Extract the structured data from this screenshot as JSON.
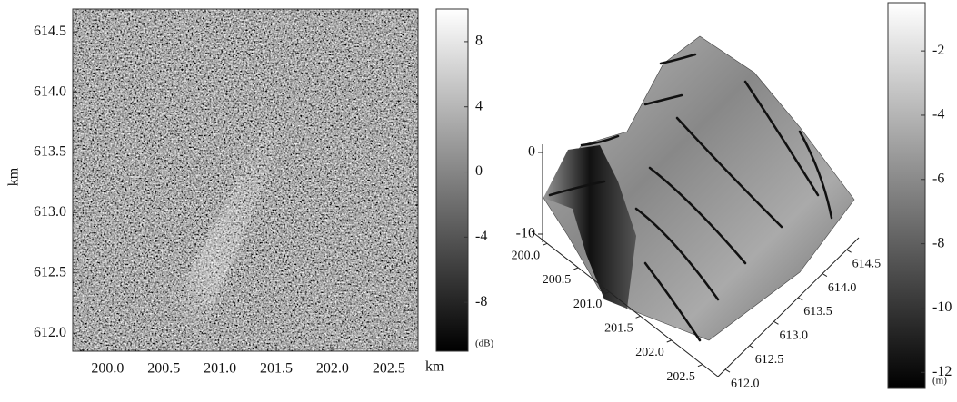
{
  "chart_data": [
    {
      "type": "heatmap",
      "xlabel": "km",
      "ylabel": "km",
      "xlim": [
        199.69,
        202.76
      ],
      "xticks": [
        {
          "value": 200,
          "label": "200.0"
        },
        200.5,
        {
          "value": 201,
          "label": "201.0"
        },
        201.5,
        {
          "value": 202,
          "label": "202.0"
        },
        202.5
      ],
      "ylim": [
        611.85,
        614.69
      ],
      "yticks": [
        {
          "value": 612,
          "label": "612.0"
        },
        612.5,
        {
          "value": 613,
          "label": "613.0"
        },
        613.5,
        {
          "value": 614,
          "label": "614.0"
        },
        614.5
      ],
      "colorbar": {
        "lim": [
          -11,
          10
        ],
        "ticks": [
          -8,
          -4,
          0,
          4,
          8
        ],
        "label": "(dB)"
      }
    },
    {
      "type": "surface",
      "xlim": [
        199.75,
        202.75
      ],
      "xticks": [
        {
          "value": 200,
          "label": "200.0"
        },
        200.5,
        {
          "value": 201,
          "label": "201.0"
        },
        201.5,
        {
          "value": 202,
          "label": "202.0"
        },
        202.5
      ],
      "ylim": [
        611.85,
        614.75
      ],
      "yticks": [
        {
          "value": 612,
          "label": "612.0"
        },
        612.5,
        {
          "value": 613,
          "label": "613.0"
        },
        613.5,
        {
          "value": 614,
          "label": "614.0"
        },
        614.5
      ],
      "zlim": [
        -11,
        1
      ],
      "zticks": [
        0,
        -10
      ],
      "colorbar": {
        "lim": [
          -12.5,
          -0.5
        ],
        "ticks": [
          -2,
          -4,
          -6,
          -8,
          -10,
          -12
        ],
        "label": "(m)"
      }
    }
  ]
}
